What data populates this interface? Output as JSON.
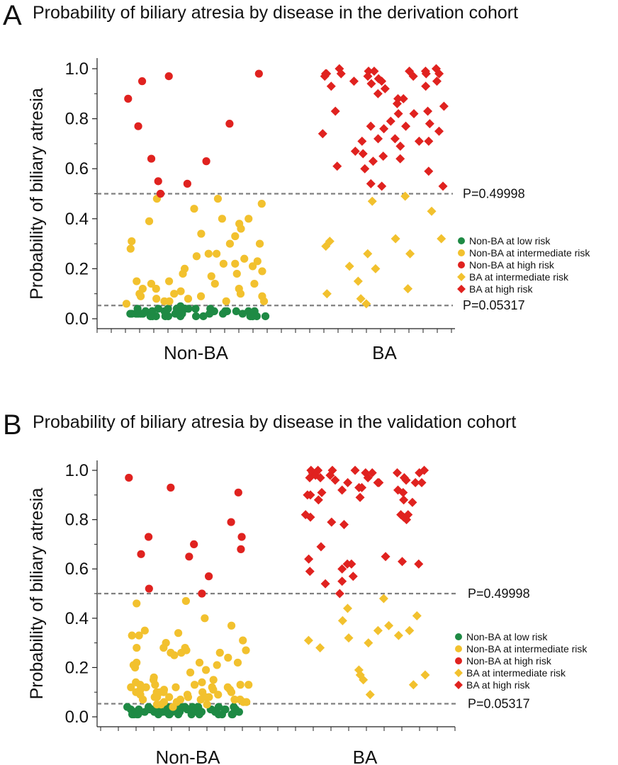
{
  "chart_data": [
    {
      "type": "scatter",
      "panel": "A",
      "title": "Probability of biliary atresia by disease in the derivation cohort",
      "ylabel": "Probability of biliary atresia",
      "xlabel": "",
      "categories": [
        "Non-BA",
        "BA"
      ],
      "ylim": [
        0,
        1.0
      ],
      "yticks": [
        "0.0",
        "0.2",
        "0.4",
        "0.6",
        "0.8",
        "1.0"
      ],
      "thresholds": [
        {
          "value": 0.49998,
          "label": "P=0.49998"
        },
        {
          "value": 0.05317,
          "label": "P=0.05317"
        }
      ],
      "grid": false,
      "legend_position": "right",
      "colors": {
        "green": "#1e8a44",
        "yellow": "#f2c12e",
        "red": "#e0221f",
        "dash": "#808080"
      },
      "series": [
        {
          "name": "Non-BA at low risk",
          "category": "Non-BA",
          "marker": "circle",
          "color": "#1e8a44",
          "values": [
            0.01,
            0.03,
            0.02,
            0.04,
            0.01,
            0.03,
            0.02,
            0.01,
            0.03,
            0.04,
            0.02,
            0.01,
            0.03,
            0.02,
            0.04,
            0.01,
            0.02,
            0.03,
            0.01,
            0.04,
            0.02,
            0.03,
            0.01,
            0.02,
            0.04,
            0.03,
            0.01,
            0.02,
            0.03,
            0.04,
            0.02,
            0.01,
            0.03,
            0.02,
            0.01,
            0.04,
            0.03,
            0.02,
            0.01,
            0.03,
            0.02,
            0.04,
            0.01,
            0.03,
            0.02,
            0.05,
            0.01,
            0.03,
            0.02,
            0.04
          ]
        },
        {
          "name": "Non-BA at intermediate risk",
          "category": "Non-BA",
          "marker": "circle",
          "color": "#f2c12e",
          "values": [
            0.48,
            0.07,
            0.12,
            0.14,
            0.4,
            0.38,
            0.22,
            0.26,
            0.25,
            0.09,
            0.07,
            0.15,
            0.39,
            0.1,
            0.14,
            0.4,
            0.08,
            0.21,
            0.3,
            0.07,
            0.09,
            0.11,
            0.31,
            0.23,
            0.18,
            0.36,
            0.34,
            0.2,
            0.15,
            0.3,
            0.24,
            0.12,
            0.19,
            0.09,
            0.48,
            0.26,
            0.17,
            0.1,
            0.14,
            0.22,
            0.12,
            0.07,
            0.28,
            0.46,
            0.44,
            0.33,
            0.18,
            0.1,
            0.08,
            0.06
          ]
        },
        {
          "name": "Non-BA at high risk",
          "category": "Non-BA",
          "marker": "circle",
          "color": "#e0221f",
          "values": [
            0.55,
            0.54,
            0.88,
            0.97,
            0.64,
            0.5,
            0.78,
            0.77,
            0.95,
            0.98,
            0.63
          ]
        },
        {
          "name": "BA at intermediate risk",
          "category": "BA",
          "marker": "diamond",
          "color": "#f2c12e",
          "values": [
            0.1,
            0.06,
            0.31,
            0.2,
            0.26,
            0.32,
            0.26,
            0.47,
            0.12,
            0.15,
            0.43,
            0.49,
            0.32,
            0.21,
            0.08,
            0.29
          ]
        },
        {
          "name": "BA at high risk",
          "category": "BA",
          "marker": "diamond",
          "color": "#e0221f",
          "values": [
            0.99,
            0.98,
            0.97,
            1.0,
            0.95,
            0.85,
            0.79,
            0.77,
            0.66,
            0.65,
            0.59,
            0.53,
            0.99,
            0.93,
            0.83,
            0.82,
            0.72,
            0.71,
            0.69,
            0.63,
            1.0,
            0.98,
            0.97,
            0.9,
            0.88,
            0.82,
            0.78,
            0.76,
            0.75,
            0.72,
            0.71,
            0.54,
            0.98,
            0.95,
            0.92,
            0.86,
            0.6,
            0.99,
            0.97,
            0.96,
            0.94,
            0.93,
            0.77,
            0.74,
            0.71,
            0.99,
            0.98,
            0.88,
            0.83,
            0.64,
            0.61,
            0.98,
            0.95,
            0.67,
            0.53
          ]
        }
      ]
    },
    {
      "type": "scatter",
      "panel": "B",
      "title": "Probability of biliary atresia by disease in the validation cohort",
      "ylabel": "Probability of biliary atresia",
      "xlabel": "",
      "categories": [
        "Non-BA",
        "BA"
      ],
      "ylim": [
        0,
        1.0
      ],
      "yticks": [
        "0.0",
        "0.2",
        "0.4",
        "0.6",
        "0.8",
        "1.0"
      ],
      "thresholds": [
        {
          "value": 0.49998,
          "label": "P=0.49998"
        },
        {
          "value": 0.05317,
          "label": "P=0.05317"
        }
      ],
      "grid": false,
      "legend_position": "right",
      "colors": {
        "green": "#1e8a44",
        "yellow": "#f2c12e",
        "red": "#e0221f",
        "dash": "#808080"
      },
      "series": [
        {
          "name": "Non-BA at low risk",
          "category": "Non-BA",
          "marker": "circle",
          "color": "#1e8a44",
          "values": [
            0.02,
            0.01,
            0.03,
            0.02,
            0.04,
            0.01,
            0.03,
            0.02,
            0.01,
            0.04,
            0.02,
            0.03,
            0.01,
            0.02,
            0.04,
            0.03,
            0.01,
            0.02,
            0.03,
            0.04,
            0.01,
            0.02,
            0.03,
            0.01,
            0.04,
            0.02,
            0.03,
            0.01,
            0.02,
            0.04,
            0.03,
            0.02,
            0.01,
            0.03,
            0.04,
            0.02,
            0.01,
            0.03,
            0.02,
            0.04,
            0.01,
            0.03,
            0.02,
            0.01,
            0.04,
            0.03,
            0.02,
            0.01,
            0.03,
            0.02,
            0.04,
            0.01,
            0.03,
            0.02,
            0.04
          ]
        },
        {
          "name": "Non-BA at intermediate risk",
          "category": "Non-BA",
          "marker": "circle",
          "color": "#f2c12e",
          "values": [
            0.22,
            0.21,
            0.27,
            0.34,
            0.07,
            0.25,
            0.08,
            0.06,
            0.11,
            0.13,
            0.26,
            0.1,
            0.07,
            0.05,
            0.1,
            0.08,
            0.06,
            0.11,
            0.09,
            0.07,
            0.26,
            0.22,
            0.12,
            0.28,
            0.05,
            0.13,
            0.4,
            0.33,
            0.08,
            0.18,
            0.14,
            0.19,
            0.35,
            0.12,
            0.1,
            0.31,
            0.24,
            0.21,
            0.3,
            0.28,
            0.26,
            0.12,
            0.08,
            0.22,
            0.47,
            0.46,
            0.37,
            0.33,
            0.15,
            0.13,
            0.27,
            0.14,
            0.11,
            0.08,
            0.2,
            0.06,
            0.09,
            0.1,
            0.28,
            0.16,
            0.07,
            0.13,
            0.05,
            0.12,
            0.1,
            0.07,
            0.09,
            0.04,
            0.15,
            0.08,
            0.11,
            0.06,
            0.13,
            0.1,
            0.12
          ]
        },
        {
          "name": "Non-BA at high risk",
          "category": "Non-BA",
          "marker": "circle",
          "color": "#e0221f",
          "values": [
            0.79,
            0.65,
            0.57,
            0.73,
            0.7,
            0.68,
            0.91,
            0.5,
            0.97,
            0.52,
            0.66,
            0.93,
            0.73
          ]
        },
        {
          "name": "BA at intermediate risk",
          "category": "BA",
          "marker": "diamond",
          "color": "#f2c12e",
          "values": [
            0.15,
            0.32,
            0.39,
            0.28,
            0.19,
            0.17,
            0.17,
            0.31,
            0.48,
            0.13,
            0.3,
            0.37,
            0.35,
            0.44,
            0.09,
            0.33,
            0.41,
            0.35
          ]
        },
        {
          "name": "BA at high risk",
          "category": "BA",
          "marker": "diamond",
          "color": "#e0221f",
          "values": [
            0.81,
            0.65,
            0.6,
            0.99,
            1.0,
            0.99,
            0.78,
            0.55,
            0.5,
            0.54,
            0.59,
            0.57,
            0.97,
            0.95,
            0.91,
            0.62,
            1.0,
            0.99,
            0.97,
            0.87,
            0.79,
            0.95,
            0.93,
            0.9,
            1.0,
            0.99,
            0.96,
            0.95,
            0.93,
            0.9,
            0.97,
            0.92,
            0.82,
            0.8,
            0.81,
            0.98,
            0.95,
            0.64,
            1.0,
            0.99,
            0.97,
            0.62,
            0.63,
            0.95,
            0.92,
            0.89,
            0.88,
            0.99,
            0.69,
            0.82,
            0.88,
            0.96,
            0.91,
            0.62,
            1.0,
            0.98,
            0.82
          ]
        }
      ]
    }
  ]
}
